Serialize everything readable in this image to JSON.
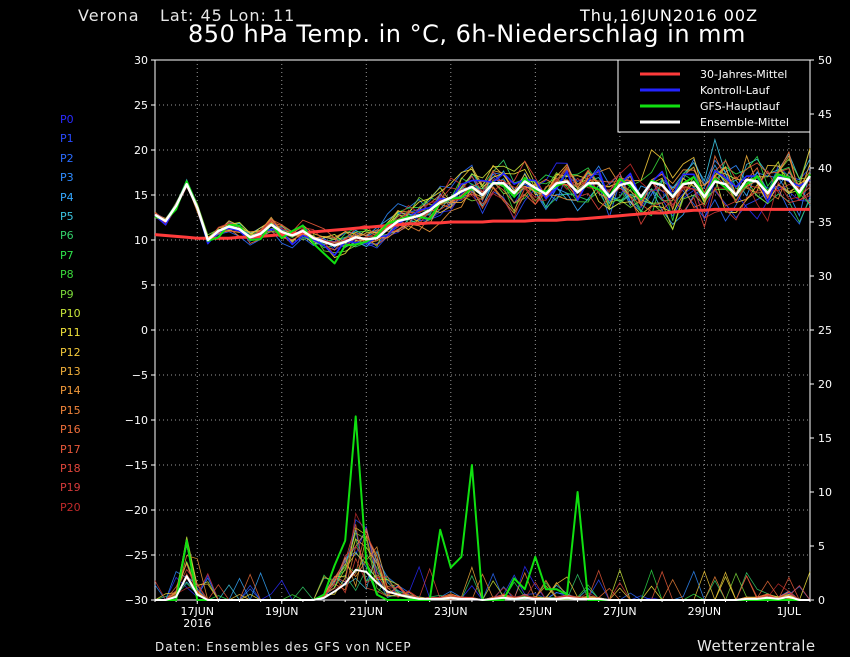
{
  "header": {
    "location": "Verona",
    "coords": "Lat: 45  Lon: 11",
    "run": "Thu,16JUN2016 00Z",
    "title": "850 hPa Temp. in °C, 6h-Niederschlag in mm"
  },
  "footer": {
    "source": "Daten: Ensembles des GFS von NCEP",
    "brand": "Wetterzentrale"
  },
  "members": [
    {
      "label": "P0",
      "color": "#2a2aff"
    },
    {
      "label": "P1",
      "color": "#2a4cff"
    },
    {
      "label": "P2",
      "color": "#2b6cff"
    },
    {
      "label": "P3",
      "color": "#2f8cff"
    },
    {
      "label": "P4",
      "color": "#35a8ff"
    },
    {
      "label": "P5",
      "color": "#3cc4e0"
    },
    {
      "label": "P6",
      "color": "#33d06a"
    },
    {
      "label": "P7",
      "color": "#2ee04a"
    },
    {
      "label": "P8",
      "color": "#3ad83a"
    },
    {
      "label": "P9",
      "color": "#7ad83a"
    },
    {
      "label": "P10",
      "color": "#c8e63a"
    },
    {
      "label": "P11",
      "color": "#f0e23a"
    },
    {
      "label": "P12",
      "color": "#f2c93a"
    },
    {
      "label": "P13",
      "color": "#f2b03a"
    },
    {
      "label": "P14",
      "color": "#f29a3a"
    },
    {
      "label": "P15",
      "color": "#f2853a"
    },
    {
      "label": "P16",
      "color": "#ee6e3a"
    },
    {
      "label": "P17",
      "color": "#e8583a"
    },
    {
      "label": "P18",
      "color": "#e0453a"
    },
    {
      "label": "P19",
      "color": "#d43a3a"
    },
    {
      "label": "P20",
      "color": "#c02a2a"
    }
  ],
  "chart_data": {
    "type": "line",
    "title": "850 hPa Temp. in °C, 6h-Niederschlag in mm",
    "y_left": {
      "min": -30,
      "max": 30,
      "ticks": [
        30,
        25,
        20,
        15,
        10,
        5,
        0,
        -5,
        -10,
        -15,
        -20,
        -25,
        -30
      ]
    },
    "y_right": {
      "min": 0,
      "max": 50,
      "ticks": [
        50,
        45,
        40,
        35,
        30,
        25,
        20,
        15,
        10,
        5,
        0
      ]
    },
    "x_axis": {
      "start_hours": 0,
      "end_hours": 372,
      "tick_labels": [
        {
          "label": "17JUN",
          "hours": 24,
          "sub": "2016"
        },
        {
          "label": "19JUN",
          "hours": 72
        },
        {
          "label": "21JUN",
          "hours": 120
        },
        {
          "label": "23JUN",
          "hours": 168
        },
        {
          "label": "25JUN",
          "hours": 216
        },
        {
          "label": "27JUN",
          "hours": 264
        },
        {
          "label": "29JUN",
          "hours": 312
        },
        {
          "label": "1JUL",
          "hours": 360
        }
      ]
    },
    "grid": true,
    "legend": {
      "placement": "top-right",
      "entries": [
        {
          "label": "30-Jahres-Mittel",
          "color": "#ff3b3b"
        },
        {
          "label": "Kontroll-Lauf",
          "color": "#2424ff"
        },
        {
          "label": "GFS-Hauptlauf",
          "color": "#10e010"
        },
        {
          "label": "Ensemble-Mittel",
          "color": "#ffffff"
        }
      ]
    },
    "x_step_hours": 6,
    "series": [
      {
        "name": "30-Jahres-Mittel",
        "axis": "left",
        "values": [
          10.6,
          10.5,
          10.4,
          10.3,
          10.2,
          10.2,
          10.2,
          10.2,
          10.3,
          10.3,
          10.4,
          10.5,
          10.6,
          10.7,
          10.8,
          10.9,
          11.0,
          11.1,
          11.2,
          11.3,
          11.4,
          11.5,
          11.6,
          11.7,
          11.8,
          11.8,
          11.9,
          11.9,
          12.0,
          12.0,
          12.0,
          12.0,
          12.1,
          12.1,
          12.1,
          12.1,
          12.2,
          12.2,
          12.2,
          12.3,
          12.3,
          12.4,
          12.5,
          12.6,
          12.7,
          12.8,
          12.9,
          13.0,
          13.0,
          13.1,
          13.2,
          13.3,
          13.3,
          13.4,
          13.4,
          13.4,
          13.4,
          13.4,
          13.4,
          13.4,
          13.4,
          13.4,
          13.4
        ]
      },
      {
        "name": "Ensemble-Mittel",
        "axis": "left",
        "values": [
          12.8,
          12.1,
          13.8,
          16.2,
          13.6,
          10.0,
          11.0,
          11.5,
          11.2,
          10.3,
          10.7,
          11.7,
          10.9,
          10.5,
          11.0,
          10.2,
          9.8,
          9.4,
          9.8,
          10.3,
          10.1,
          10.2,
          11.2,
          12.1,
          12.4,
          12.7,
          13.3,
          14.2,
          14.7,
          15.4,
          15.9,
          15.0,
          16.3,
          16.3,
          15.2,
          16.5,
          15.8,
          15.1,
          16.3,
          16.5,
          15.3,
          16.3,
          16.3,
          14.8,
          16.1,
          16.4,
          14.8,
          16.4,
          16.1,
          14.8,
          16.2,
          16.4,
          14.8,
          16.5,
          16.2,
          15.0,
          16.7,
          16.5,
          15.2,
          16.9,
          16.7,
          15.3,
          17.1
        ]
      },
      {
        "name": "Kontroll-Lauf",
        "axis": "left",
        "values": [
          12.7,
          11.7,
          13.9,
          16.3,
          13.5,
          9.6,
          10.9,
          11.3,
          11.0,
          9.9,
          10.8,
          11.2,
          11.0,
          9.5,
          10.5,
          10.0,
          9.4,
          8.3,
          9.9,
          9.7,
          9.6,
          10.3,
          10.5,
          11.8,
          12.5,
          13.3,
          13.6,
          14.6,
          14.5,
          16.2,
          16.6,
          16.6,
          16.4,
          17.4,
          16.2,
          16.7,
          16.6,
          14.6,
          15.7,
          17.6,
          14.4,
          16.6,
          17.8,
          14.5,
          16.2,
          17.4,
          14.4,
          16.4,
          17.6,
          14.9,
          17.3,
          17.3,
          14.8,
          17.7,
          16.9,
          15.9,
          17.1,
          17.1,
          14.2,
          17.2,
          16.5,
          16.0,
          16.7
        ]
      },
      {
        "name": "GFS-Hauptlauf",
        "axis": "left",
        "values": [
          12.6,
          12.2,
          13.4,
          16.5,
          13.7,
          9.9,
          10.3,
          11.7,
          11.6,
          10.0,
          10.1,
          11.8,
          10.2,
          11.0,
          11.6,
          9.6,
          8.5,
          7.4,
          9.4,
          9.5,
          9.8,
          10.5,
          11.8,
          12.2,
          12.6,
          12.6,
          12.3,
          14.2,
          14.6,
          14.7,
          15.8,
          15.0,
          16.4,
          16.1,
          14.8,
          16.9,
          15.5,
          15.4,
          16.0,
          16.5,
          15.4,
          16.1,
          15.6,
          14.8,
          16.8,
          16.0,
          14.5,
          16.6,
          16.1,
          14.9,
          16.3,
          17.0,
          15.0,
          16.8,
          15.8,
          15.1,
          16.2,
          17.1,
          15.3,
          17.3,
          16.9,
          14.8,
          17.3
        ]
      },
      {
        "name": "Niederschlag Ensemble-Mittel",
        "axis": "right",
        "values": [
          0,
          0,
          0.3,
          2.2,
          0.5,
          0,
          0,
          0,
          0,
          0,
          0,
          0,
          0,
          0,
          0,
          0,
          0.2,
          0.8,
          1.5,
          2.8,
          2.6,
          1.6,
          0.8,
          0.5,
          0.3,
          0.1,
          0.1,
          0.1,
          0.2,
          0.1,
          0.1,
          0,
          0.1,
          0.2,
          0.1,
          0.2,
          0.1,
          0.1,
          0.1,
          0.2,
          0.1,
          0.1,
          0.1,
          0,
          0,
          0,
          0,
          0,
          0,
          0,
          0,
          0,
          0,
          0,
          0,
          0,
          0.1,
          0.1,
          0.2,
          0.1,
          0.3,
          0,
          0
        ]
      },
      {
        "name": "Niederschlag GFS-Hauptlauf",
        "axis": "right",
        "values": [
          0,
          0,
          0,
          5.5,
          0,
          0,
          0,
          0,
          0,
          0,
          0,
          0,
          0,
          0,
          0,
          0,
          0.5,
          3.2,
          5.5,
          17.0,
          3.5,
          0.5,
          0,
          0,
          0,
          0,
          0,
          6.5,
          3.0,
          4.0,
          12.5,
          0,
          0,
          0,
          2.0,
          1.0,
          4.0,
          1.0,
          1.0,
          0.5,
          10.0,
          0,
          0,
          0,
          0,
          0,
          0,
          0,
          0,
          0,
          0,
          0,
          0,
          0,
          0,
          0,
          0,
          0,
          0,
          0,
          0,
          0,
          0
        ]
      }
    ]
  }
}
